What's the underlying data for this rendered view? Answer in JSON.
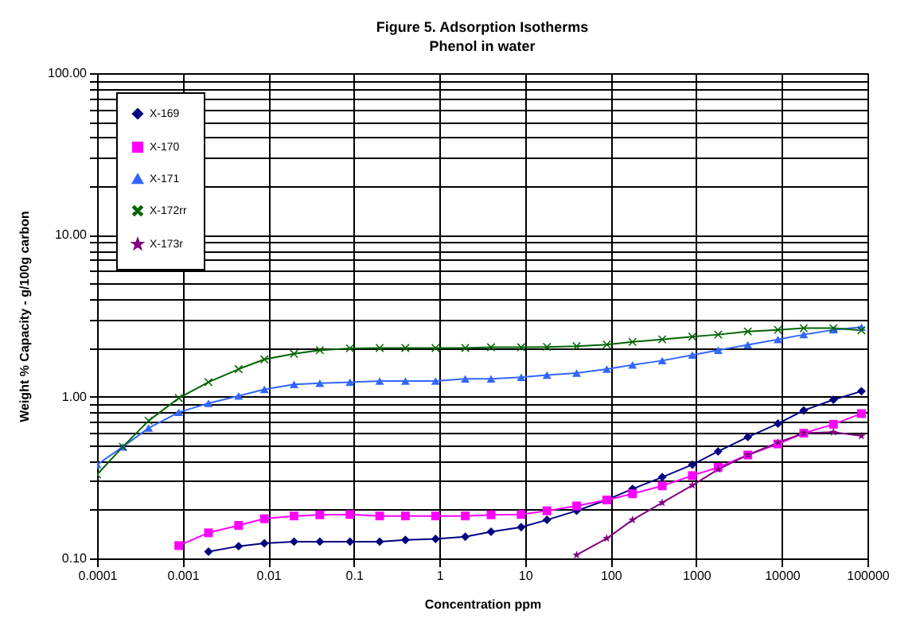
{
  "chart_data": {
    "type": "line",
    "title": "Figure 5. Adsorption Isotherms",
    "subtitle": "Phenol in water",
    "xlabel": "Concentration ppm",
    "ylabel": "Weight % Capacity - g/100g carbon",
    "x": [
      0.0001,
      0.0002,
      0.0004,
      0.0009,
      0.002,
      0.0045,
      0.009,
      0.02,
      0.04,
      0.09,
      0.2,
      0.4,
      0.9,
      2,
      4,
      9,
      18,
      40,
      90,
      180,
      400,
      900,
      1800,
      4000,
      9000,
      18000,
      40000,
      85000
    ],
    "series": [
      {
        "name": "X-169",
        "color": "#000080",
        "marker": "diamond",
        "values": [
          null,
          null,
          null,
          null,
          0.11,
          0.119,
          0.124,
          0.127,
          0.127,
          0.127,
          0.127,
          0.13,
          0.132,
          0.136,
          0.146,
          0.156,
          0.173,
          0.197,
          0.23,
          0.269,
          0.318,
          0.38,
          0.459,
          0.563,
          0.681,
          0.822,
          0.957,
          1.08
        ]
      },
      {
        "name": "X-170",
        "color": "#ff00ff",
        "marker": "square",
        "values": [
          null,
          null,
          null,
          0.12,
          0.144,
          0.16,
          0.176,
          0.183,
          0.186,
          0.187,
          0.183,
          0.183,
          0.183,
          0.183,
          0.186,
          0.187,
          0.197,
          0.211,
          0.23,
          0.251,
          0.281,
          0.325,
          0.366,
          0.436,
          0.51,
          0.595,
          0.675,
          0.786
        ]
      },
      {
        "name": "X-171",
        "color": "#3366ff",
        "marker": "triangle",
        "values": [
          0.38,
          0.49,
          0.64,
          0.8,
          0.91,
          1.01,
          1.11,
          1.19,
          1.21,
          1.23,
          1.25,
          1.25,
          1.25,
          1.29,
          1.29,
          1.32,
          1.36,
          1.4,
          1.48,
          1.57,
          1.67,
          1.81,
          1.94,
          2.09,
          2.26,
          2.42,
          2.59,
          2.69
        ]
      },
      {
        "name": "X-172rr",
        "color": "#006400",
        "marker": "cross",
        "values": [
          0.33,
          0.49,
          0.71,
          0.98,
          1.23,
          1.48,
          1.7,
          1.84,
          1.94,
          1.99,
          2.0,
          2.0,
          2.0,
          2.0,
          2.02,
          2.02,
          2.03,
          2.05,
          2.1,
          2.18,
          2.26,
          2.35,
          2.42,
          2.53,
          2.59,
          2.65,
          2.65,
          2.57
        ]
      },
      {
        "name": "X-173r",
        "color": "#800080",
        "marker": "star",
        "values": [
          null,
          null,
          null,
          null,
          null,
          null,
          null,
          null,
          null,
          null,
          null,
          null,
          null,
          null,
          null,
          null,
          null,
          0.105,
          0.133,
          0.173,
          0.221,
          0.283,
          0.355,
          0.436,
          0.52,
          0.595,
          0.603,
          0.572
        ]
      }
    ],
    "log": "xy",
    "grid": true,
    "legend": "top left",
    "line_style": "solid",
    "xlim": [
      0.0001,
      100000
    ],
    "xticks": [
      0.0001,
      0.001,
      0.01,
      0.1,
      1,
      10,
      100,
      1000,
      10000,
      100000
    ],
    "ylim": [
      0.1,
      100
    ],
    "yticks": [
      {
        "value": 0.1,
        "label": "0.10"
      },
      {
        "value": 0.2,
        "label": null
      },
      {
        "value": 0.3,
        "label": null
      },
      {
        "value": 0.4,
        "label": null
      },
      {
        "value": 0.5,
        "label": null
      },
      {
        "value": 0.6,
        "label": null
      },
      {
        "value": 0.7,
        "label": null
      },
      {
        "value": 0.8,
        "label": null
      },
      {
        "value": 0.9,
        "label": null
      },
      {
        "value": 1,
        "label": "1.00"
      },
      {
        "value": 2,
        "label": null
      },
      {
        "value": 3,
        "label": null
      },
      {
        "value": 4,
        "label": null
      },
      {
        "value": 5,
        "label": null
      },
      {
        "value": 6,
        "label": null
      },
      {
        "value": 7,
        "label": null
      },
      {
        "value": 8,
        "label": null
      },
      {
        "value": 9,
        "label": null
      },
      {
        "value": 10,
        "label": "10.00"
      },
      {
        "value": 20,
        "label": null
      },
      {
        "value": 30,
        "label": null
      },
      {
        "value": 40,
        "label": null
      },
      {
        "value": 50,
        "label": null
      },
      {
        "value": 60,
        "label": null
      },
      {
        "value": 70,
        "label": null
      },
      {
        "value": 80,
        "label": null
      },
      {
        "value": 90,
        "label": null
      },
      {
        "value": 100,
        "label": "100.00"
      }
    ]
  }
}
